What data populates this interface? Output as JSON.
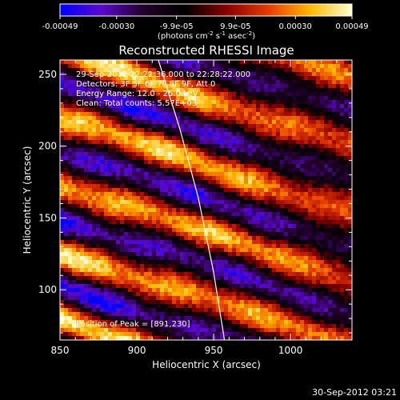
{
  "chart_data": {
    "type": "heatmap",
    "title": "Reconstructed RHESSI Image",
    "xlabel": "Heliocentric X (arcsec)",
    "ylabel": "Heliocentric Y (arcsec)",
    "xlim": [
      850,
      1040
    ],
    "ylim": [
      65,
      260
    ],
    "x_ticks": [
      850,
      900,
      950,
      1000
    ],
    "y_ticks": [
      100,
      150,
      200,
      250
    ],
    "colorbar": {
      "ticks": [
        "-0.00049",
        "-0.00030",
        "-9.9e-05",
        "9.9e-05",
        "0.00030",
        "0.00049"
      ],
      "tick_values": [
        -0.00049,
        -0.0003,
        -9.9e-05,
        9.9e-05,
        0.0003,
        0.00049
      ],
      "range": [
        -0.00049,
        0.00049
      ],
      "units_prefix": "(photons cm",
      "units_sup1": "-2",
      "units_mid1": " s",
      "units_sup2": "-1",
      "units_mid2": " asec",
      "units_sup3": "-2",
      "units_suffix": ")",
      "colors": [
        "#0000ff",
        "#5a0acb",
        "#22002a",
        "#000000",
        "#8a0000",
        "#e63c00",
        "#ffb800",
        "#ffffd0"
      ]
    },
    "annotations": [
      "29-Sep-2012 22:22:36.000 to 22:28:22.000",
      "Detectors: 3F 5F 6F 7F 8F 9F, Att 0",
      "Energy Range: 12.0 - 25.0 keV",
      "Clean: Total counts: 5.57E+03"
    ],
    "peak_label": "Position of Peak = [891,230]",
    "peak_position": [
      891,
      230
    ],
    "limb_curve": {
      "x": [
        914,
        928,
        940,
        950,
        957
      ],
      "y": [
        260,
        212,
        164,
        112,
        65
      ]
    },
    "stripes": {
      "orientation_deg": -19,
      "period_arcsec": 44,
      "note_intensity_max": 0.00049
    }
  },
  "footer": {
    "timestamp": "30-Sep-2012 03:21"
  }
}
